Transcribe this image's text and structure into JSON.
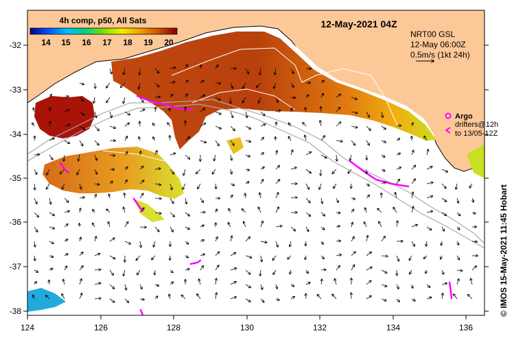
{
  "title": "12-May-2021 04Z",
  "colorbar": {
    "title": "4h comp, p50, All Sats",
    "ticks": [
      "14",
      "15",
      "16",
      "17",
      "18",
      "19",
      "20"
    ]
  },
  "model_note": {
    "line1": "NRT00 GSL",
    "line2": "12-May 06:00Z",
    "line3": "0.5m/s (1kt 24h)"
  },
  "argo_legend": {
    "argo": "Argo",
    "drifters": "drifters@12h",
    "to": "to 13/05-12Z"
  },
  "credit": "© IMOS 15-May-2021 11:45 Hobart",
  "axes": {
    "lon_ticks": [
      "124",
      "126",
      "128",
      "130",
      "132",
      "134",
      "136"
    ],
    "lat_ticks": [
      "-32",
      "-33",
      "-34",
      "-35",
      "-36",
      "-37",
      "-38"
    ]
  },
  "colors": {
    "land": "#fdc898",
    "argo_drifters": "#ff00ff",
    "contour": "#ffffff",
    "bathymetry": "#a9a9a9"
  }
}
